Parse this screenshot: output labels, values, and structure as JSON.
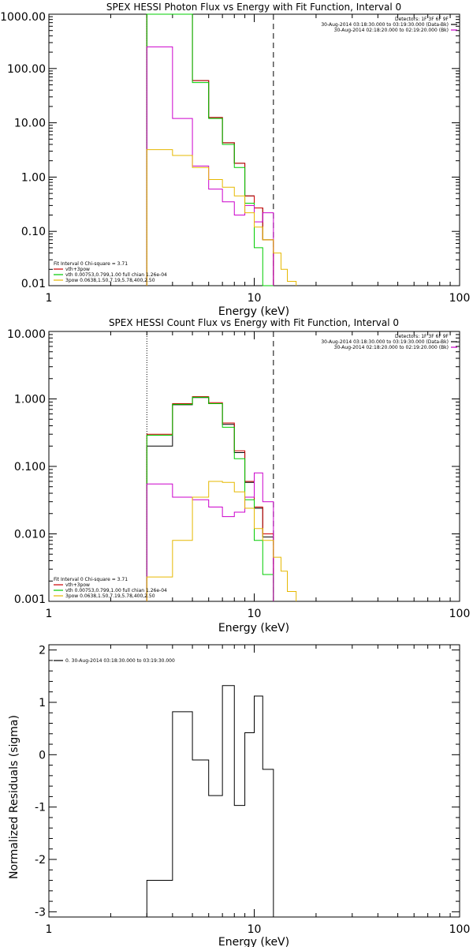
{
  "chart_data": [
    {
      "type": "line",
      "title": "SPEX HESSI Photon Flux vs Energy with Fit Function, Interval 0",
      "xlabel": "Energy (keV)",
      "ylabel": "",
      "xscale": "log",
      "yscale": "log",
      "xlim": [
        1,
        100
      ],
      "ylim": [
        0.01,
        1000
      ],
      "xticks": [
        {
          "v": 1,
          "label": "1"
        },
        {
          "v": 10,
          "label": "10"
        },
        {
          "v": 100,
          "label": "100"
        }
      ],
      "yticks": [
        {
          "v": 1000,
          "label": "1000.00"
        },
        {
          "v": 100,
          "label": "100.00"
        },
        {
          "v": 10,
          "label": "10.00"
        },
        {
          "v": 1,
          "label": "1.00"
        },
        {
          "v": 0.1,
          "label": "0.10"
        },
        {
          "v": 0.01,
          "label": "0.01"
        }
      ],
      "header_lines": [
        {
          "text": "Detectors: 1F 3F 6F 9F",
          "color": ""
        },
        {
          "text": "30-Aug-2014 03:18:30.000 to 03:19:30.000 (Data-Bk)",
          "color": "#000000"
        },
        {
          "text": "30-Aug-2014 02:18:20.000 to 02:19:20.000 (Bk)",
          "color": "#cc00cc"
        }
      ],
      "legend_lines": [
        {
          "text": "Fit Interval 0   Chi-square = 3.71",
          "color": ""
        },
        {
          "text": "vth+3pow",
          "color": "#cc0000"
        },
        {
          "text": "vth 0.00753,0.799,1.00   full chian 1.26e-04",
          "color": "#00cc00"
        },
        {
          "text": "3pow 0.0638,1.50,7.19,5.78,400,2.50",
          "color": "#e6b800"
        }
      ],
      "vlines": [
        {
          "x": 3.0,
          "style": "dotted",
          "color": "#000000"
        },
        {
          "x": 12.4,
          "style": "dashed",
          "color": "#000000"
        }
      ],
      "series": [
        {
          "color": "#000000",
          "edges": [
            3.0,
            4.0,
            5.0,
            6.0,
            7.0,
            8.0,
            9.0,
            10.0,
            11.0,
            12.4
          ],
          "values": [
            1000,
            1000,
            60,
            12.5,
            4.3,
            1.8,
            0.45,
            0.27,
            0.07
          ]
        },
        {
          "color": "#cc0000",
          "edges": [
            3.0,
            4.0,
            5.0,
            6.0,
            7.0,
            8.0,
            9.0,
            10.0,
            11.0,
            12.4
          ],
          "values": [
            1000,
            1000,
            60,
            12.5,
            4.3,
            1.8,
            0.45,
            0.27,
            0.07
          ]
        },
        {
          "color": "#00cc00",
          "edges": [
            3.0,
            4.0,
            5.0,
            6.0,
            7.0,
            8.0,
            9.0,
            10.0,
            11.0,
            12.4
          ],
          "values": [
            1000,
            1000,
            55,
            12.0,
            4.0,
            1.5,
            0.33,
            0.05,
            0.01
          ]
        },
        {
          "color": "#cc00cc",
          "edges": [
            3.0,
            4.0,
            5.0,
            6.0,
            7.0,
            8.0,
            9.0,
            10.0,
            11.0,
            12.4
          ],
          "values": [
            250,
            12,
            1.6,
            0.6,
            0.35,
            0.2,
            0.3,
            0.15,
            0.22
          ]
        },
        {
          "color": "#e6b800",
          "edges": [
            3.0,
            4.0,
            5.0,
            6.0,
            7.0,
            8.0,
            9.0,
            10.0,
            11.0,
            12.4,
            13.5,
            14.5,
            16.0
          ],
          "values": [
            3.2,
            2.5,
            1.5,
            0.9,
            0.65,
            0.45,
            0.22,
            0.12,
            0.07,
            0.04,
            0.02,
            0.012
          ]
        }
      ]
    },
    {
      "type": "line",
      "title": "SPEX HESSI Count Flux vs Energy with Fit Function, Interval 0",
      "xlabel": "Energy (keV)",
      "ylabel": "",
      "xscale": "log",
      "yscale": "log",
      "xlim": [
        1,
        100
      ],
      "ylim": [
        0.001,
        10
      ],
      "xticks": [
        {
          "v": 1,
          "label": "1"
        },
        {
          "v": 10,
          "label": "10"
        },
        {
          "v": 100,
          "label": "100"
        }
      ],
      "yticks": [
        {
          "v": 10,
          "label": "10.000"
        },
        {
          "v": 1,
          "label": "1.000"
        },
        {
          "v": 0.1,
          "label": "0.100"
        },
        {
          "v": 0.01,
          "label": "0.010"
        },
        {
          "v": 0.001,
          "label": "0.001"
        }
      ],
      "header_lines": [
        {
          "text": "Detectors: 1F 3F 6F 9F",
          "color": ""
        },
        {
          "text": "30-Aug-2014 03:18:30.000 to 03:19:30.000 (Data-Bk)",
          "color": "#000000"
        },
        {
          "text": "30-Aug-2014 02:18:20.000 to 02:19:20.000 (Bk)",
          "color": "#cc00cc"
        }
      ],
      "legend_lines": [
        {
          "text": "Fit Interval 0   Chi-square = 3.71",
          "color": ""
        },
        {
          "text": "vth+3pow",
          "color": "#cc0000"
        },
        {
          "text": "vth 0.00753,0.799,1.00   full chian 1.26e-04",
          "color": "#00cc00"
        },
        {
          "text": "3pow 0.0638,1.50,7.19,5.78,400,2.50",
          "color": "#e6b800"
        }
      ],
      "vlines": [
        {
          "x": 3.0,
          "style": "dotted",
          "color": "#000000"
        },
        {
          "x": 12.4,
          "style": "dashed",
          "color": "#000000"
        }
      ],
      "series": [
        {
          "color": "#000000",
          "edges": [
            3.0,
            4.0,
            5.0,
            6.0,
            7.0,
            8.0,
            9.0,
            10.0,
            11.0,
            12.4
          ],
          "values": [
            0.2,
            0.82,
            1.05,
            0.85,
            0.42,
            0.16,
            0.058,
            0.024,
            0.009
          ]
        },
        {
          "color": "#cc0000",
          "edges": [
            3.0,
            4.0,
            5.0,
            6.0,
            7.0,
            8.0,
            9.0,
            10.0,
            11.0,
            12.4
          ],
          "values": [
            0.3,
            0.85,
            1.08,
            0.88,
            0.44,
            0.17,
            0.06,
            0.025,
            0.01
          ]
        },
        {
          "color": "#00cc00",
          "edges": [
            3.0,
            4.0,
            5.0,
            6.0,
            7.0,
            8.0,
            9.0,
            10.0,
            11.0,
            12.4
          ],
          "values": [
            0.29,
            0.83,
            1.06,
            0.85,
            0.38,
            0.13,
            0.032,
            0.008,
            0.0025
          ]
        },
        {
          "color": "#cc00cc",
          "edges": [
            3.0,
            4.0,
            5.0,
            6.0,
            7.0,
            8.0,
            9.0,
            10.0,
            11.0,
            12.4
          ],
          "values": [
            0.055,
            0.035,
            0.032,
            0.025,
            0.018,
            0.021,
            0.035,
            0.08,
            0.03
          ]
        },
        {
          "color": "#e6b800",
          "edges": [
            3.0,
            4.0,
            5.0,
            6.0,
            7.0,
            8.0,
            9.0,
            10.0,
            11.0,
            12.4,
            13.5,
            14.5,
            16.0
          ],
          "values": [
            0.0023,
            0.008,
            0.035,
            0.06,
            0.058,
            0.042,
            0.024,
            0.012,
            0.008,
            0.0045,
            0.0028,
            0.0014
          ]
        }
      ]
    },
    {
      "type": "line",
      "title": "",
      "xlabel": "Energy (keV)",
      "ylabel": "Normalized Residuals (sigma)",
      "xscale": "log",
      "yscale": "linear",
      "xlim": [
        1,
        100
      ],
      "ylim": [
        -3.1,
        2.1
      ],
      "xticks": [
        {
          "v": 1,
          "label": "1"
        },
        {
          "v": 10,
          "label": "10"
        },
        {
          "v": 100,
          "label": "100"
        }
      ],
      "yticks": [
        {
          "v": 2,
          "label": "2"
        },
        {
          "v": 1,
          "label": "1"
        },
        {
          "v": 0,
          "label": "0"
        },
        {
          "v": -1,
          "label": "-1"
        },
        {
          "v": -2,
          "label": "-2"
        },
        {
          "v": -3,
          "label": "-3"
        }
      ],
      "header_lines": [],
      "legend_lines": [
        {
          "text": "0. 30-Aug-2014 03:18:30.000 to 03:19:30.000",
          "color": "#000000"
        }
      ],
      "vlines": [],
      "series": [
        {
          "color": "#000000",
          "edges": [
            3.0,
            4.0,
            5.0,
            6.0,
            7.0,
            8.0,
            9.0,
            10.0,
            11.0,
            12.4
          ],
          "values": [
            -2.4,
            0.82,
            -0.1,
            -0.78,
            1.32,
            -0.97,
            0.42,
            1.12,
            -0.28
          ],
          "drop_to_floor": true
        }
      ]
    }
  ]
}
